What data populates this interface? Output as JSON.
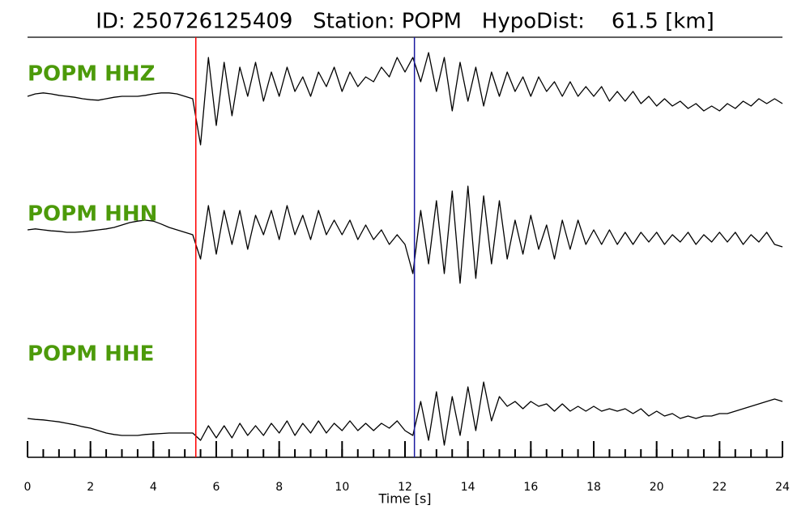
{
  "chart_data": {
    "type": "seismogram",
    "title": "ID: 250726125409   Station: POPM   HypoDist:    61.5 [km]",
    "xlabel": "Time [s]",
    "xlim": [
      0,
      24
    ],
    "xticks": [
      0,
      2,
      4,
      6,
      8,
      10,
      12,
      14,
      16,
      18,
      20,
      22,
      24
    ],
    "xminorticks": [
      0,
      0.5,
      1,
      1.5,
      2,
      2.5,
      3,
      3.5,
      4,
      4.5,
      5,
      5.5,
      6,
      6.5,
      7,
      7.5,
      8,
      8.5,
      9,
      9.5,
      10,
      10.5,
      11,
      11.5,
      12,
      12.5,
      13,
      13.5,
      14,
      14.5,
      15,
      15.5,
      16,
      16.5,
      17,
      17.5,
      18,
      18.5,
      19,
      19.5,
      20,
      20.5,
      21,
      21.5,
      22,
      22.5,
      23,
      23.5,
      24
    ],
    "ylim": [
      -1,
      1
    ],
    "label_color": "#4c9a0a",
    "markers": [
      {
        "x": 5.35,
        "color": "#ff0000"
      },
      {
        "x": 12.3,
        "color": "#1a1aa0"
      }
    ],
    "x": [
      0,
      0.25,
      0.5,
      0.75,
      1,
      1.25,
      1.5,
      1.75,
      2,
      2.25,
      2.5,
      2.75,
      3,
      3.25,
      3.5,
      3.75,
      4,
      4.25,
      4.5,
      4.75,
      5,
      5.25,
      5.5,
      5.75,
      6,
      6.25,
      6.5,
      6.75,
      7,
      7.25,
      7.5,
      7.75,
      8,
      8.25,
      8.5,
      8.75,
      9,
      9.25,
      9.5,
      9.75,
      10,
      10.25,
      10.5,
      10.75,
      11,
      11.25,
      11.5,
      11.75,
      12,
      12.25,
      12.5,
      12.75,
      13,
      13.25,
      13.5,
      13.75,
      14,
      14.25,
      14.5,
      14.75,
      15,
      15.25,
      15.5,
      15.75,
      16,
      16.25,
      16.5,
      16.75,
      17,
      17.25,
      17.5,
      17.75,
      18,
      18.25,
      18.5,
      18.75,
      19,
      19.25,
      19.5,
      19.75,
      20,
      20.25,
      20.5,
      20.75,
      21,
      21.25,
      21.5,
      21.75,
      22,
      22.25,
      22.5,
      22.75,
      23,
      23.25,
      23.5,
      23.75,
      24
    ],
    "series": [
      {
        "name": "POPM HHZ",
        "color": "#000000",
        "values": [
          0.1,
          0.15,
          0.17,
          0.15,
          0.12,
          0.1,
          0.08,
          0.05,
          0.03,
          0.02,
          0.05,
          0.08,
          0.1,
          0.1,
          0.1,
          0.12,
          0.15,
          0.17,
          0.17,
          0.15,
          0.1,
          0.05,
          -0.9,
          0.9,
          -0.5,
          0.8,
          -0.3,
          0.7,
          0.1,
          0.8,
          0.0,
          0.6,
          0.1,
          0.7,
          0.2,
          0.5,
          0.1,
          0.6,
          0.3,
          0.7,
          0.2,
          0.6,
          0.3,
          0.5,
          0.4,
          0.7,
          0.5,
          0.9,
          0.6,
          0.9,
          0.4,
          1.0,
          0.2,
          0.9,
          -0.2,
          0.8,
          0.0,
          0.7,
          -0.1,
          0.6,
          0.1,
          0.6,
          0.2,
          0.5,
          0.1,
          0.5,
          0.2,
          0.4,
          0.1,
          0.4,
          0.1,
          0.3,
          0.1,
          0.3,
          0.0,
          0.2,
          0.0,
          0.2,
          -0.05,
          0.1,
          -0.1,
          0.05,
          -0.1,
          0.0,
          -0.15,
          -0.05,
          -0.2,
          -0.1,
          -0.2,
          -0.05,
          -0.15,
          0.0,
          -0.1,
          0.05,
          -0.05,
          0.05,
          -0.05
        ]
      },
      {
        "name": "POPM HHN",
        "color": "#000000",
        "values": [
          0.1,
          0.12,
          0.1,
          0.08,
          0.07,
          0.05,
          0.05,
          0.06,
          0.08,
          0.1,
          0.12,
          0.15,
          0.2,
          0.25,
          0.28,
          0.3,
          0.28,
          0.22,
          0.15,
          0.1,
          0.05,
          0.0,
          -0.5,
          0.6,
          -0.4,
          0.5,
          -0.2,
          0.5,
          -0.3,
          0.4,
          0.0,
          0.5,
          -0.1,
          0.6,
          0.0,
          0.4,
          -0.1,
          0.5,
          0.0,
          0.3,
          0.0,
          0.3,
          -0.1,
          0.2,
          -0.1,
          0.1,
          -0.2,
          0.0,
          -0.2,
          -0.8,
          0.5,
          -0.6,
          0.7,
          -0.8,
          0.9,
          -1.0,
          1.0,
          -0.9,
          0.8,
          -0.6,
          0.7,
          -0.5,
          0.3,
          -0.4,
          0.4,
          -0.3,
          0.2,
          -0.5,
          0.3,
          -0.3,
          0.3,
          -0.2,
          0.1,
          -0.2,
          0.1,
          -0.2,
          0.05,
          -0.2,
          0.05,
          -0.15,
          0.05,
          -0.2,
          0.0,
          -0.15,
          0.05,
          -0.2,
          0.0,
          -0.15,
          0.05,
          -0.15,
          0.05,
          -0.2,
          0.0,
          -0.15,
          0.05,
          -0.2,
          -0.25
        ]
      },
      {
        "name": "POPM HHE",
        "color": "#000000",
        "values": [
          0.05,
          0.03,
          0.02,
          0.0,
          -0.02,
          -0.05,
          -0.08,
          -0.12,
          -0.15,
          -0.2,
          -0.25,
          -0.28,
          -0.3,
          -0.3,
          -0.3,
          -0.28,
          -0.27,
          -0.26,
          -0.25,
          -0.25,
          -0.25,
          -0.25,
          -0.4,
          -0.1,
          -0.35,
          -0.1,
          -0.35,
          -0.05,
          -0.3,
          -0.1,
          -0.3,
          -0.05,
          -0.25,
          0.0,
          -0.3,
          -0.05,
          -0.25,
          0.0,
          -0.25,
          -0.05,
          -0.2,
          0.0,
          -0.2,
          -0.05,
          -0.2,
          -0.05,
          -0.15,
          0.0,
          -0.2,
          -0.3,
          0.4,
          -0.4,
          0.6,
          -0.5,
          0.5,
          -0.3,
          0.7,
          -0.2,
          0.8,
          0.0,
          0.5,
          0.3,
          0.4,
          0.25,
          0.4,
          0.3,
          0.35,
          0.2,
          0.35,
          0.2,
          0.3,
          0.2,
          0.3,
          0.2,
          0.25,
          0.2,
          0.25,
          0.15,
          0.25,
          0.1,
          0.2,
          0.1,
          0.15,
          0.05,
          0.1,
          0.05,
          0.1,
          0.1,
          0.15,
          0.15,
          0.2,
          0.25,
          0.3,
          0.35,
          0.4,
          0.45,
          0.4
        ]
      }
    ]
  }
}
